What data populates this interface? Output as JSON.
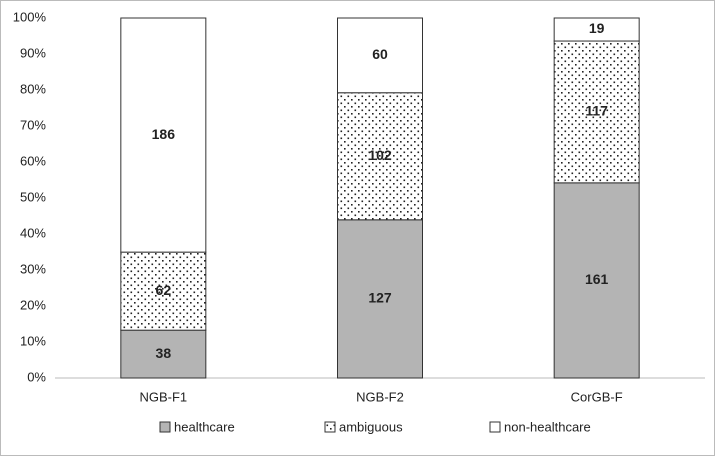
{
  "chart_data": {
    "type": "bar",
    "stacking": "percent",
    "categories": [
      "NGB-F1",
      "NGB-F2",
      "CorGB-F"
    ],
    "series": [
      {
        "name": "healthcare",
        "color": "#b4b4b4",
        "pattern": "none",
        "values": [
          38,
          127,
          161
        ]
      },
      {
        "name": "ambiguous",
        "color": "#ffffff",
        "pattern": "dots",
        "values": [
          62,
          102,
          117
        ]
      },
      {
        "name": "non-healthcare",
        "color": "#ffffff",
        "pattern": "none",
        "values": [
          186,
          60,
          19
        ]
      }
    ],
    "ylim": [
      0,
      100
    ],
    "yticks": [
      {
        "value": 0,
        "label": "0%"
      },
      {
        "value": 10,
        "label": "10%"
      },
      {
        "value": 20,
        "label": "20%"
      },
      {
        "value": 30,
        "label": "30%"
      },
      {
        "value": 40,
        "label": "40%"
      },
      {
        "value": 50,
        "label": "50%"
      },
      {
        "value": 60,
        "label": "60%"
      },
      {
        "value": 70,
        "label": "70%"
      },
      {
        "value": 80,
        "label": "80%"
      },
      {
        "value": 90,
        "label": "90%"
      },
      {
        "value": 100,
        "label": "100%"
      }
    ],
    "grid": false,
    "legend": "bottom"
  }
}
